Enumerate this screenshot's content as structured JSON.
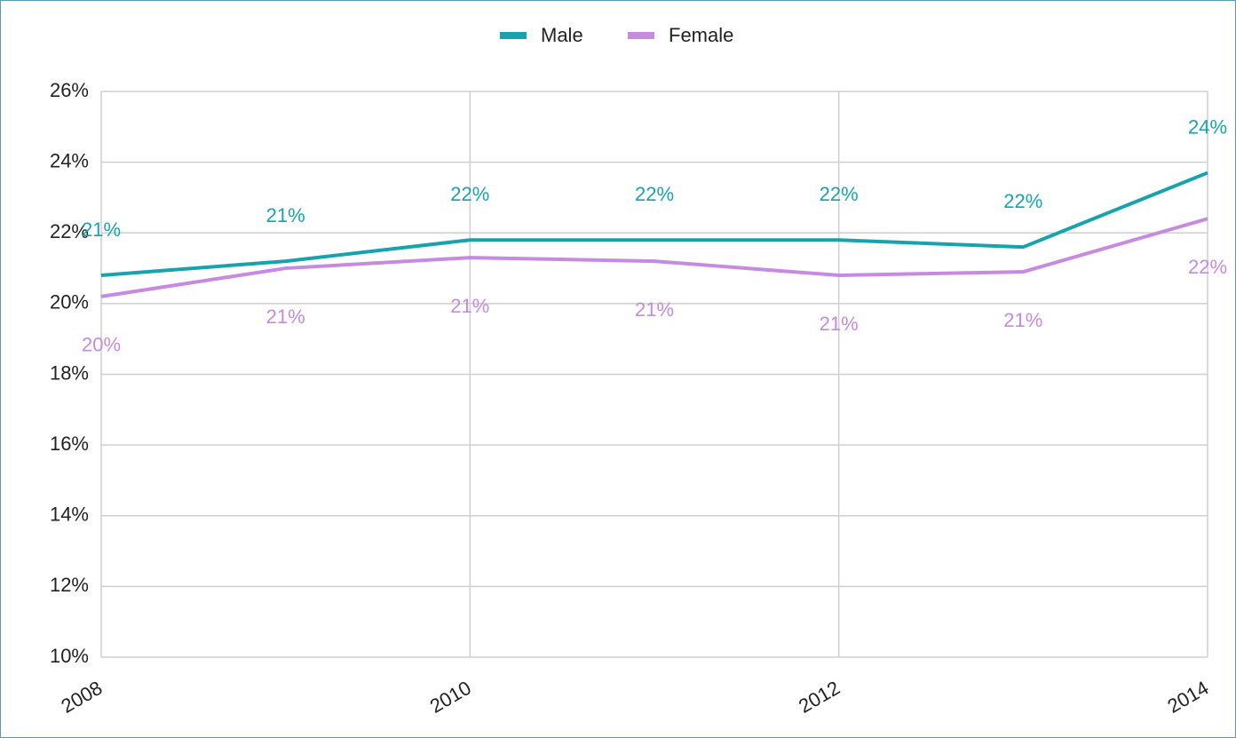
{
  "chart_data": {
    "type": "line",
    "x": [
      2008,
      2009,
      2010,
      2011,
      2012,
      2013,
      2014
    ],
    "xlim": [
      2008,
      2014
    ],
    "xticks": [
      2008,
      2010,
      2012,
      2014
    ],
    "ylim": [
      10,
      26
    ],
    "yticks": [
      {
        "value": 10,
        "label": "10%"
      },
      {
        "value": 12,
        "label": "12%"
      },
      {
        "value": 14,
        "label": "14%"
      },
      {
        "value": 16,
        "label": "16%"
      },
      {
        "value": 18,
        "label": "18%"
      },
      {
        "value": 20,
        "label": "20%"
      },
      {
        "value": 22,
        "label": "22%"
      },
      {
        "value": 24,
        "label": "24%"
      },
      {
        "value": 26,
        "label": "26%"
      }
    ],
    "grid": true,
    "legend": "top",
    "series": [
      {
        "name": "Male",
        "color": "#17a3ad",
        "values": [
          20.8,
          21.2,
          21.8,
          21.8,
          21.8,
          21.6,
          23.7
        ],
        "value_labels": [
          "21%",
          "21%",
          "22%",
          "22%",
          "22%",
          "22%",
          "24%"
        ]
      },
      {
        "name": "Female",
        "color": "#c68ae0",
        "values": [
          20.2,
          21.0,
          21.3,
          21.2,
          20.8,
          20.9,
          22.4
        ],
        "value_labels": [
          "20%",
          "21%",
          "21%",
          "21%",
          "21%",
          "21%",
          "22%"
        ]
      }
    ]
  }
}
